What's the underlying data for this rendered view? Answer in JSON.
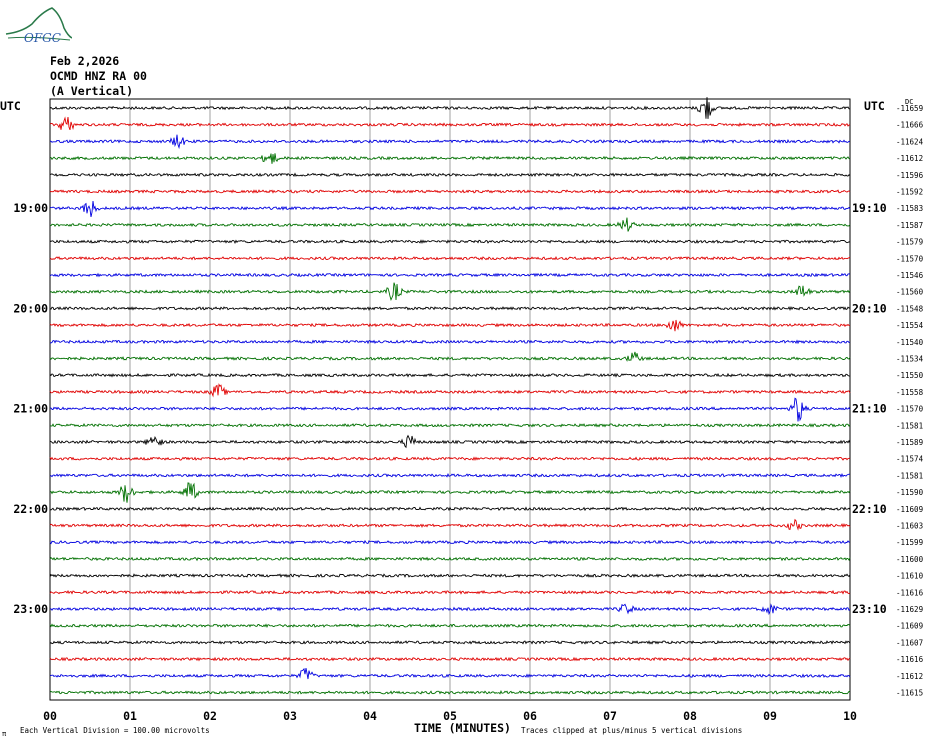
{
  "logo": {
    "text": "OFGC",
    "color": "#2a7a4a"
  },
  "header": {
    "date": "Feb 2,2026",
    "station": "OCMD HNZ RA 00",
    "component": "(A Vertical)"
  },
  "footer": {
    "left_note": "Each Vertical Division =  100.00 microvolts",
    "right_note": "Traces clipped at plus/minus 5 vertical divisions",
    "corner_mark": "π"
  },
  "chart_data": {
    "type": "line",
    "title": "OCMD HNZ RA 00 (A Vertical)",
    "xlabel": "TIME (MINUTES)",
    "ylabel": "",
    "x_ticks": [
      "00",
      "01",
      "02",
      "03",
      "04",
      "05",
      "06",
      "07",
      "08",
      "09",
      "10"
    ],
    "xlim": [
      0,
      10
    ],
    "grid": true,
    "left_timezone_label": "UTC",
    "right_timezone_label": "UTC",
    "dc_label": "DC",
    "left_hour_labels": [
      {
        "row": 6,
        "label": "19:00"
      },
      {
        "row": 12,
        "label": "20:00"
      },
      {
        "row": 18,
        "label": "21:00"
      },
      {
        "row": 24,
        "label": "22:00"
      },
      {
        "row": 30,
        "label": "23:00"
      }
    ],
    "right_hour_labels": [
      {
        "row": 6,
        "label": "19:10"
      },
      {
        "row": 12,
        "label": "20:10"
      },
      {
        "row": 18,
        "label": "21:10"
      },
      {
        "row": 24,
        "label": "22:10"
      },
      {
        "row": 30,
        "label": "23:10"
      }
    ],
    "trace_colors": [
      "#000000",
      "#e00000",
      "#0000e0",
      "#007000"
    ],
    "traces_dc_offsets": [
      -11659,
      -11666,
      -11624,
      -11612,
      -11596,
      -11592,
      -11583,
      -11587,
      -11579,
      -11570,
      -11546,
      -11560,
      -11548,
      -11554,
      -11540,
      -11534,
      -11550,
      -11558,
      -11570,
      -11581,
      -11589,
      -11574,
      -11581,
      -11590,
      -11609,
      -11603,
      -11599,
      -11600,
      -11610,
      -11616,
      -11629,
      -11609,
      -11607,
      -11616,
      -11612,
      -11615
    ],
    "events": [
      {
        "row": 0,
        "minute": 8.2,
        "amp": 1.6
      },
      {
        "row": 1,
        "minute": 0.2,
        "amp": 1.0
      },
      {
        "row": 2,
        "minute": 1.6,
        "amp": 0.7
      },
      {
        "row": 3,
        "minute": 2.75,
        "amp": 0.9
      },
      {
        "row": 6,
        "minute": 0.5,
        "amp": 1.1
      },
      {
        "row": 7,
        "minute": 7.2,
        "amp": 0.8
      },
      {
        "row": 11,
        "minute": 4.3,
        "amp": 1.1
      },
      {
        "row": 11,
        "minute": 9.4,
        "amp": 0.8
      },
      {
        "row": 13,
        "minute": 7.8,
        "amp": 0.8
      },
      {
        "row": 15,
        "minute": 7.3,
        "amp": 0.7
      },
      {
        "row": 17,
        "minute": 2.1,
        "amp": 0.9
      },
      {
        "row": 18,
        "minute": 9.35,
        "amp": 1.6
      },
      {
        "row": 20,
        "minute": 1.3,
        "amp": 0.9
      },
      {
        "row": 20,
        "minute": 4.5,
        "amp": 0.8
      },
      {
        "row": 23,
        "minute": 0.95,
        "amp": 1.2
      },
      {
        "row": 23,
        "minute": 1.75,
        "amp": 1.3
      },
      {
        "row": 25,
        "minute": 9.3,
        "amp": 0.6
      },
      {
        "row": 30,
        "minute": 7.2,
        "amp": 0.6
      },
      {
        "row": 30,
        "minute": 9.0,
        "amp": 0.6
      },
      {
        "row": 34,
        "minute": 3.2,
        "amp": 0.9
      }
    ]
  }
}
